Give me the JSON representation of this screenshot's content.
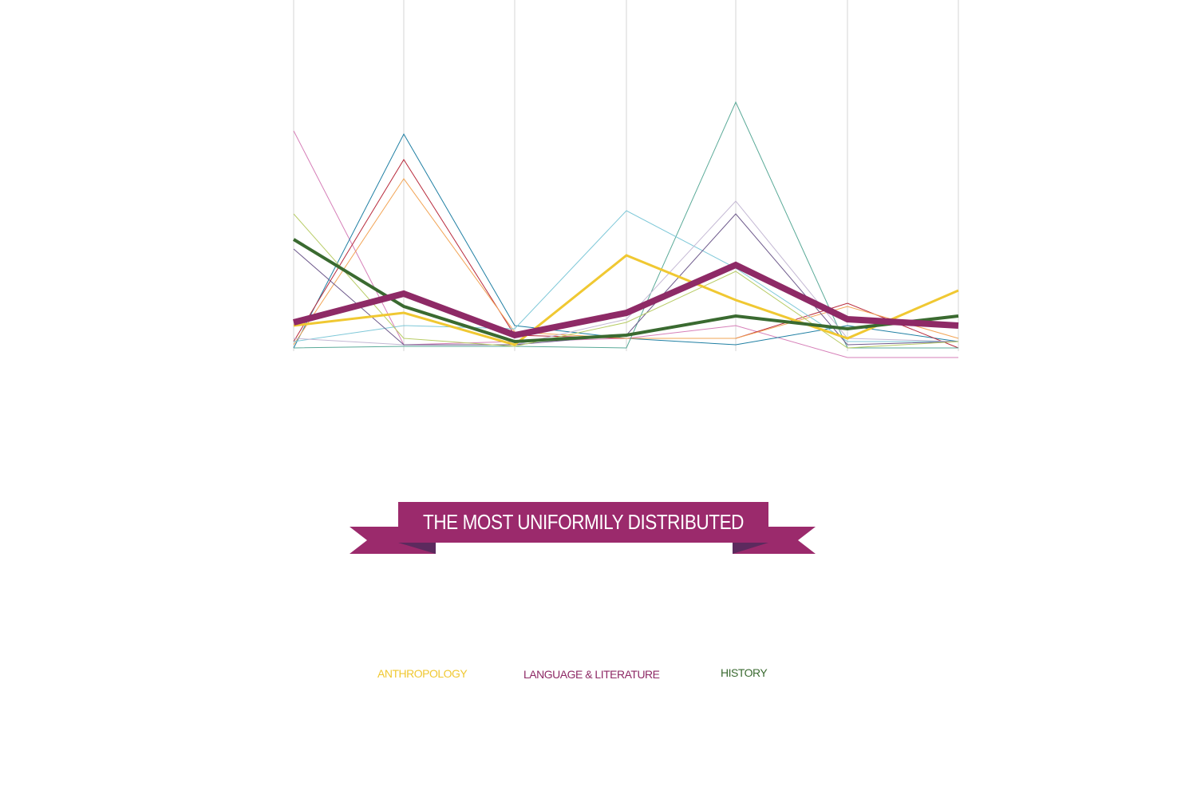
{
  "banner": {
    "title": "THE MOST UNIFORMILY DISTRIBUTED",
    "color": "#9b2a6c",
    "shadow_color": "#5c2a5e"
  },
  "legend": {
    "items": [
      {
        "label": "ANTHROPOLOGY",
        "color": "#f0c832"
      },
      {
        "label": "LANGUAGE & LITERATURE",
        "color": "#8e2a66"
      },
      {
        "label": "HISTORY",
        "color": "#3a6a30"
      }
    ]
  },
  "chart_data": {
    "type": "line",
    "title": "THE MOST UNIFORMILY DISTRIBUTED",
    "x_count": 7,
    "ylim": [
      0,
      100
    ],
    "grid": "vertical",
    "series": [
      {
        "color": "#d67fb8",
        "width": 1,
        "values": [
          68,
          1,
          2,
          3,
          7,
          -3,
          -3
        ]
      },
      {
        "color": "#1f7fa3",
        "width": 1,
        "values": [
          0,
          67,
          7,
          3,
          1,
          7,
          2
        ]
      },
      {
        "color": "#b82a3c",
        "width": 1,
        "values": [
          2,
          59,
          4,
          3,
          3,
          14,
          0
        ]
      },
      {
        "color": "#f2a455",
        "width": 1,
        "values": [
          1,
          53,
          5,
          3,
          3,
          13,
          3
        ]
      },
      {
        "color": "#5aaa98",
        "width": 1,
        "values": [
          0,
          0.5,
          0.5,
          0,
          77,
          0,
          0
        ]
      },
      {
        "color": "#7ec8d8",
        "width": 1,
        "values": [
          2,
          7,
          6,
          43,
          25,
          2,
          2
        ]
      },
      {
        "color": "#c4b8d4",
        "width": 1,
        "values": [
          3,
          1,
          1,
          9,
          46,
          3,
          2
        ]
      },
      {
        "color": "#6e5a8c",
        "width": 1,
        "values": [
          31,
          1,
          1,
          4,
          42,
          1,
          2
        ]
      },
      {
        "color": "#b8cc66",
        "width": 1,
        "values": [
          42,
          3,
          0.5,
          8,
          24,
          0,
          2
        ]
      },
      {
        "color": "#f0c832",
        "width": 3,
        "values": [
          7,
          11,
          1,
          29,
          15,
          3,
          18
        ]
      },
      {
        "color": "#3a6a30",
        "width": 4,
        "values": [
          34,
          13,
          2,
          4,
          10,
          6,
          10
        ]
      },
      {
        "color": "#8e2a66",
        "width": 8,
        "values": [
          8,
          17,
          4,
          11,
          26,
          9,
          7
        ]
      }
    ]
  }
}
